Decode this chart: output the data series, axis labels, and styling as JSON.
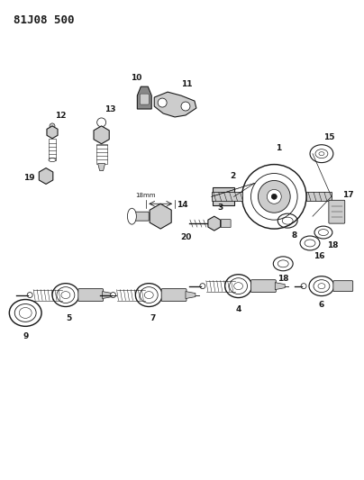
{
  "title": "81J08 500",
  "bg_color": "#ffffff",
  "fig_width": 4.04,
  "fig_height": 5.33,
  "dpi": 100,
  "line_color": "#1a1a1a",
  "text_color": "#1a1a1a",
  "gray_fill": "#aaaaaa",
  "light_gray": "#cccccc",
  "label_fontsize": 6.5,
  "title_fontsize": 9
}
